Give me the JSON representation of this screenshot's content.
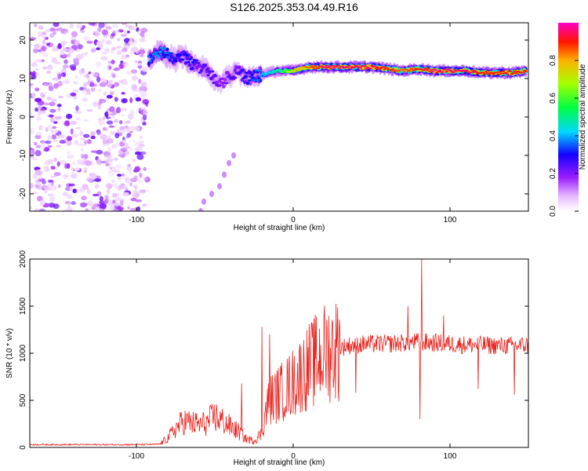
{
  "page": {
    "title": "S126.2025.353.04.49.R16"
  },
  "chart_data": [
    {
      "type": "heatmap",
      "title": "S126.2025.353.04.49.R16",
      "xlabel": "Height of straight line (km)",
      "ylabel": "Frequency (Hz)",
      "xlim": [
        -168,
        150
      ],
      "ylim": [
        -24.5,
        24.5
      ],
      "x_ticks": [
        -100,
        0,
        100
      ],
      "x_tick_labels": [
        "-100",
        "0",
        "100"
      ],
      "y_ticks": [
        -20,
        -10,
        0,
        10,
        20
      ],
      "y_tick_labels": [
        "-20",
        "-10",
        "0",
        "10",
        "20"
      ],
      "colorbar": {
        "label": "Normalized spectral amplitude",
        "range": [
          0,
          1
        ],
        "ticks": [
          0.0,
          0.2,
          0.4,
          0.6,
          0.8
        ],
        "tick_labels": [
          "0.0",
          "0.2",
          "0.4",
          "0.6",
          "0.8"
        ]
      },
      "signal_ridge": {
        "x": [
          -92,
          -85,
          -80,
          -75,
          -70,
          -65,
          -60,
          -55,
          -50,
          -45,
          -40,
          -35,
          -30,
          -25,
          -20,
          -15,
          -10,
          -5,
          0,
          5,
          10,
          15,
          20,
          30,
          40,
          50,
          60,
          70,
          80,
          90,
          100,
          110,
          120,
          130,
          140,
          149
        ],
        "y": [
          15,
          17,
          16,
          15,
          16,
          14,
          13,
          12,
          10,
          9,
          11,
          12,
          10,
          10.5,
          11,
          11.5,
          12,
          12,
          12,
          12.5,
          13,
          13,
          13,
          13,
          13,
          13,
          12.5,
          12,
          12.5,
          12,
          12,
          12,
          11.5,
          11.5,
          11.5,
          12
        ],
        "amplitude": [
          0.35,
          0.4,
          0.35,
          0.3,
          0.3,
          0.3,
          0.25,
          0.25,
          0.25,
          0.2,
          0.25,
          0.25,
          0.3,
          0.35,
          0.4,
          0.45,
          0.5,
          0.6,
          0.75,
          0.8,
          0.85,
          0.9,
          0.95,
          0.95,
          0.95,
          0.95,
          0.9,
          0.85,
          0.9,
          0.95,
          0.95,
          0.95,
          0.9,
          0.9,
          0.9,
          0.9
        ]
      },
      "noise_region_x": [
        -168,
        -93
      ],
      "faint_arc": {
        "x": [
          -59,
          -57,
          -52,
          -47,
          -44,
          -41,
          -38
        ],
        "y": [
          -24.5,
          -22,
          -20,
          -18,
          -15,
          -12,
          -10
        ]
      }
    },
    {
      "type": "line",
      "xlabel": "Height of straight line (km)",
      "ylabel": "SNR (10 * v/v)",
      "xlim": [
        -168,
        150
      ],
      "ylim": [
        0,
        2000
      ],
      "x_ticks": [
        -100,
        0,
        100
      ],
      "x_tick_labels": [
        "-100",
        "0",
        "100"
      ],
      "y_ticks": [
        0,
        500,
        1000,
        1500,
        2000
      ],
      "y_tick_labels": [
        "0",
        "500",
        "1000",
        "1500",
        "2000"
      ],
      "series": [
        {
          "name": "SNR",
          "color": "#e8231e",
          "x": [
            -168,
            -150,
            -130,
            -110,
            -95,
            -85,
            -80,
            -75,
            -70,
            -65,
            -60,
            -55,
            -50,
            -45,
            -40,
            -35,
            -30,
            -25,
            -20,
            -17,
            -15,
            -10,
            -5,
            0,
            5,
            10,
            15,
            20,
            25,
            30,
            35,
            40,
            50,
            60,
            70,
            80,
            90,
            100,
            110,
            120,
            130,
            140,
            150
          ],
          "y": [
            30,
            30,
            30,
            30,
            30,
            35,
            100,
            200,
            280,
            260,
            240,
            260,
            330,
            280,
            220,
            170,
            90,
            70,
            150,
            420,
            500,
            560,
            620,
            690,
            780,
            860,
            930,
            1000,
            1040,
            1060,
            1080,
            1090,
            1100,
            1100,
            1110,
            1120,
            1110,
            1100,
            1090,
            1090,
            1080,
            1080,
            1090
          ]
        }
      ],
      "spikes": [
        {
          "x": -33,
          "y": 680
        },
        {
          "x": -20,
          "y": 1280
        },
        {
          "x": -15,
          "y": 1200
        },
        {
          "x": 82,
          "y": 2000
        },
        {
          "x": 73,
          "y": 1500
        },
        {
          "x": 96,
          "y": 1400
        },
        {
          "x": 40,
          "y": 580
        },
        {
          "x": 81,
          "y": 300
        },
        {
          "x": 118,
          "y": 620
        },
        {
          "x": 141,
          "y": 560
        }
      ]
    }
  ]
}
